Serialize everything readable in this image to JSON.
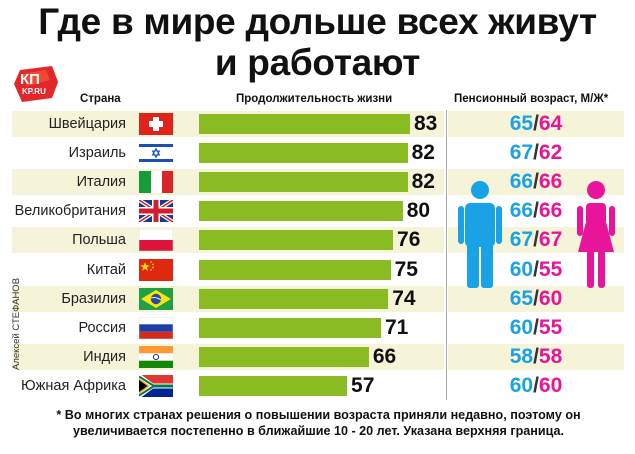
{
  "title_line1": "Где в мире дольше всех живут",
  "title_line2": "и работают",
  "logo": {
    "text": "КП",
    "sub": "KP.RU"
  },
  "headers": {
    "country": "Страна",
    "life": "Продолжительность жизни",
    "pension": "Пенсионный возраст, М/Ж*"
  },
  "credit": "Алексей СТЕФАНОВ",
  "footnote": "* Во многих странах решения о повышении возраста приняли недавно, поэтому он увеличивается постепенно в ближайшие 10 - 20 лет. Указана верхняя граница.",
  "colors": {
    "bar": "#8bbb22",
    "male": "#1aa2e6",
    "female": "#e8149a",
    "band": "#f6f4d8"
  },
  "chart_data": {
    "type": "bar",
    "categories": [
      "Швейцария",
      "Израиль",
      "Италия",
      "Великобритания",
      "Польша",
      "Китай",
      "Бразилия",
      "Россия",
      "Индия",
      "Южная Африка"
    ],
    "flags": [
      "switzerland-flag",
      "israel-flag",
      "italy-flag",
      "uk-flag",
      "poland-flag",
      "china-flag",
      "brazil-flag",
      "russia-flag",
      "india-flag",
      "south-africa-flag"
    ],
    "series": [
      {
        "name": "Продолжительность жизни",
        "values": [
          83,
          82,
          82,
          80,
          76,
          75,
          74,
          71,
          66,
          57
        ]
      }
    ],
    "pension_age": {
      "male": [
        65,
        67,
        66,
        66,
        67,
        60,
        65,
        60,
        58,
        60
      ],
      "female": [
        64,
        62,
        66,
        66,
        67,
        55,
        60,
        55,
        58,
        60
      ]
    },
    "orientation": "horizontal"
  }
}
